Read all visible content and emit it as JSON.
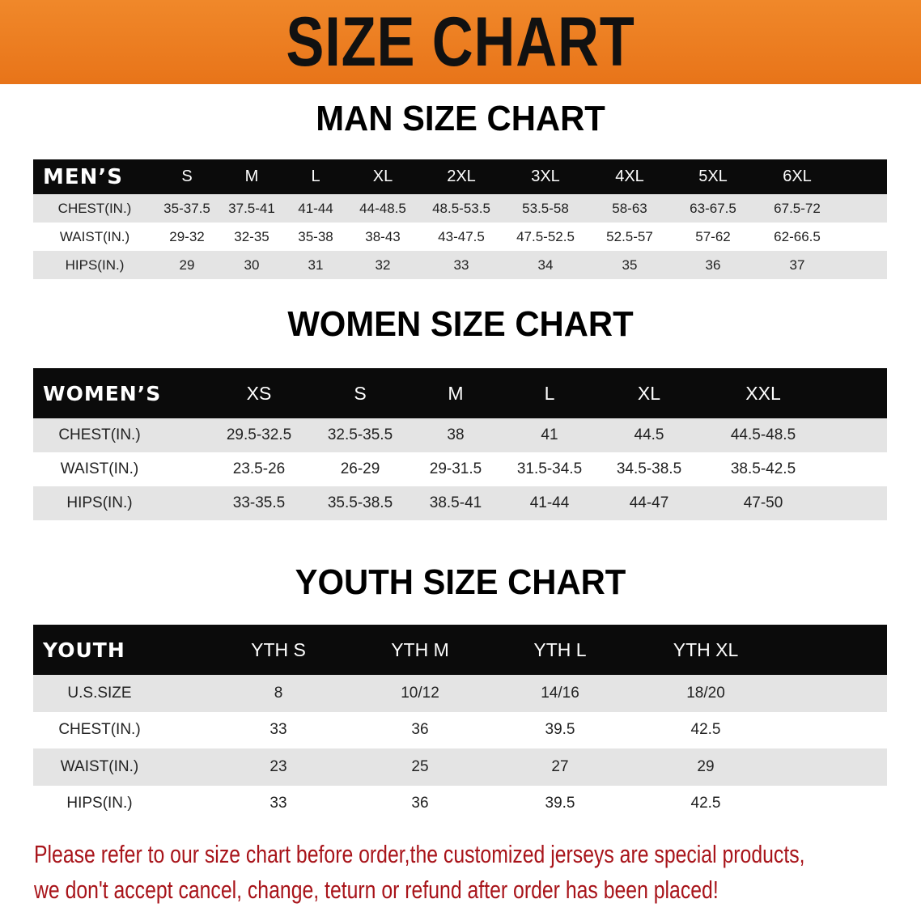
{
  "banner": {
    "title": "SIZE CHART"
  },
  "men": {
    "title": "MAN SIZE CHART",
    "headers": [
      "MEN’S",
      "S",
      "M",
      "L",
      "XL",
      "2XL",
      "3XL",
      "4XL",
      "5XL",
      "6XL"
    ],
    "rows": [
      [
        "CHEST(IN.)",
        "35-37.5",
        "37.5-41",
        "41-44",
        "44-48.5",
        "48.5-53.5",
        "53.5-58",
        "58-63",
        "63-67.5",
        "67.5-72"
      ],
      [
        "WAIST(IN.)",
        "29-32",
        "32-35",
        "35-38",
        "38-43",
        "43-47.5",
        "47.5-52.5",
        "52.5-57",
        "57-62",
        "62-66.5"
      ],
      [
        "HIPS(IN.)",
        "29",
        "30",
        "31",
        "32",
        "33",
        "34",
        "35",
        "36",
        "37"
      ]
    ]
  },
  "women": {
    "title": "WOMEN SIZE CHART",
    "headers": [
      "WOMEN’S",
      "XS",
      "S",
      "M",
      "L",
      "XL",
      "XXL"
    ],
    "rows": [
      [
        "CHEST(IN.)",
        "29.5-32.5",
        "32.5-35.5",
        "38",
        "41",
        "44.5",
        "44.5-48.5"
      ],
      [
        "WAIST(IN.)",
        "23.5-26",
        "26-29",
        "29-31.5",
        "31.5-34.5",
        "34.5-38.5",
        "38.5-42.5"
      ],
      [
        "HIPS(IN.)",
        "33-35.5",
        "35.5-38.5",
        "38.5-41",
        "41-44",
        "44-47",
        "47-50"
      ]
    ]
  },
  "youth": {
    "title": "YOUTH SIZE CHART",
    "headers": [
      "YOUTH",
      "YTH S",
      "YTH M",
      "YTH L",
      "YTH XL"
    ],
    "rows": [
      [
        "U.S.SIZE",
        "8",
        "10/12",
        "14/16",
        "18/20"
      ],
      [
        "CHEST(IN.)",
        "33",
        "36",
        "39.5",
        "42.5"
      ],
      [
        "WAIST(IN.)",
        "23",
        "25",
        "27",
        "29"
      ],
      [
        "HIPS(IN.)",
        "33",
        "36",
        "39.5",
        "42.5"
      ]
    ]
  },
  "notice": {
    "line1": "Please refer to our size chart before order,the customized jerseys are special products,",
    "line2": "we don't accept cancel, change, teturn or refund after order has been placed!"
  },
  "colors": {
    "banner": "#e87c1e",
    "notice": "#a8141a",
    "header_row": "#0b0b0b",
    "stripe": "#e4e4e4"
  }
}
